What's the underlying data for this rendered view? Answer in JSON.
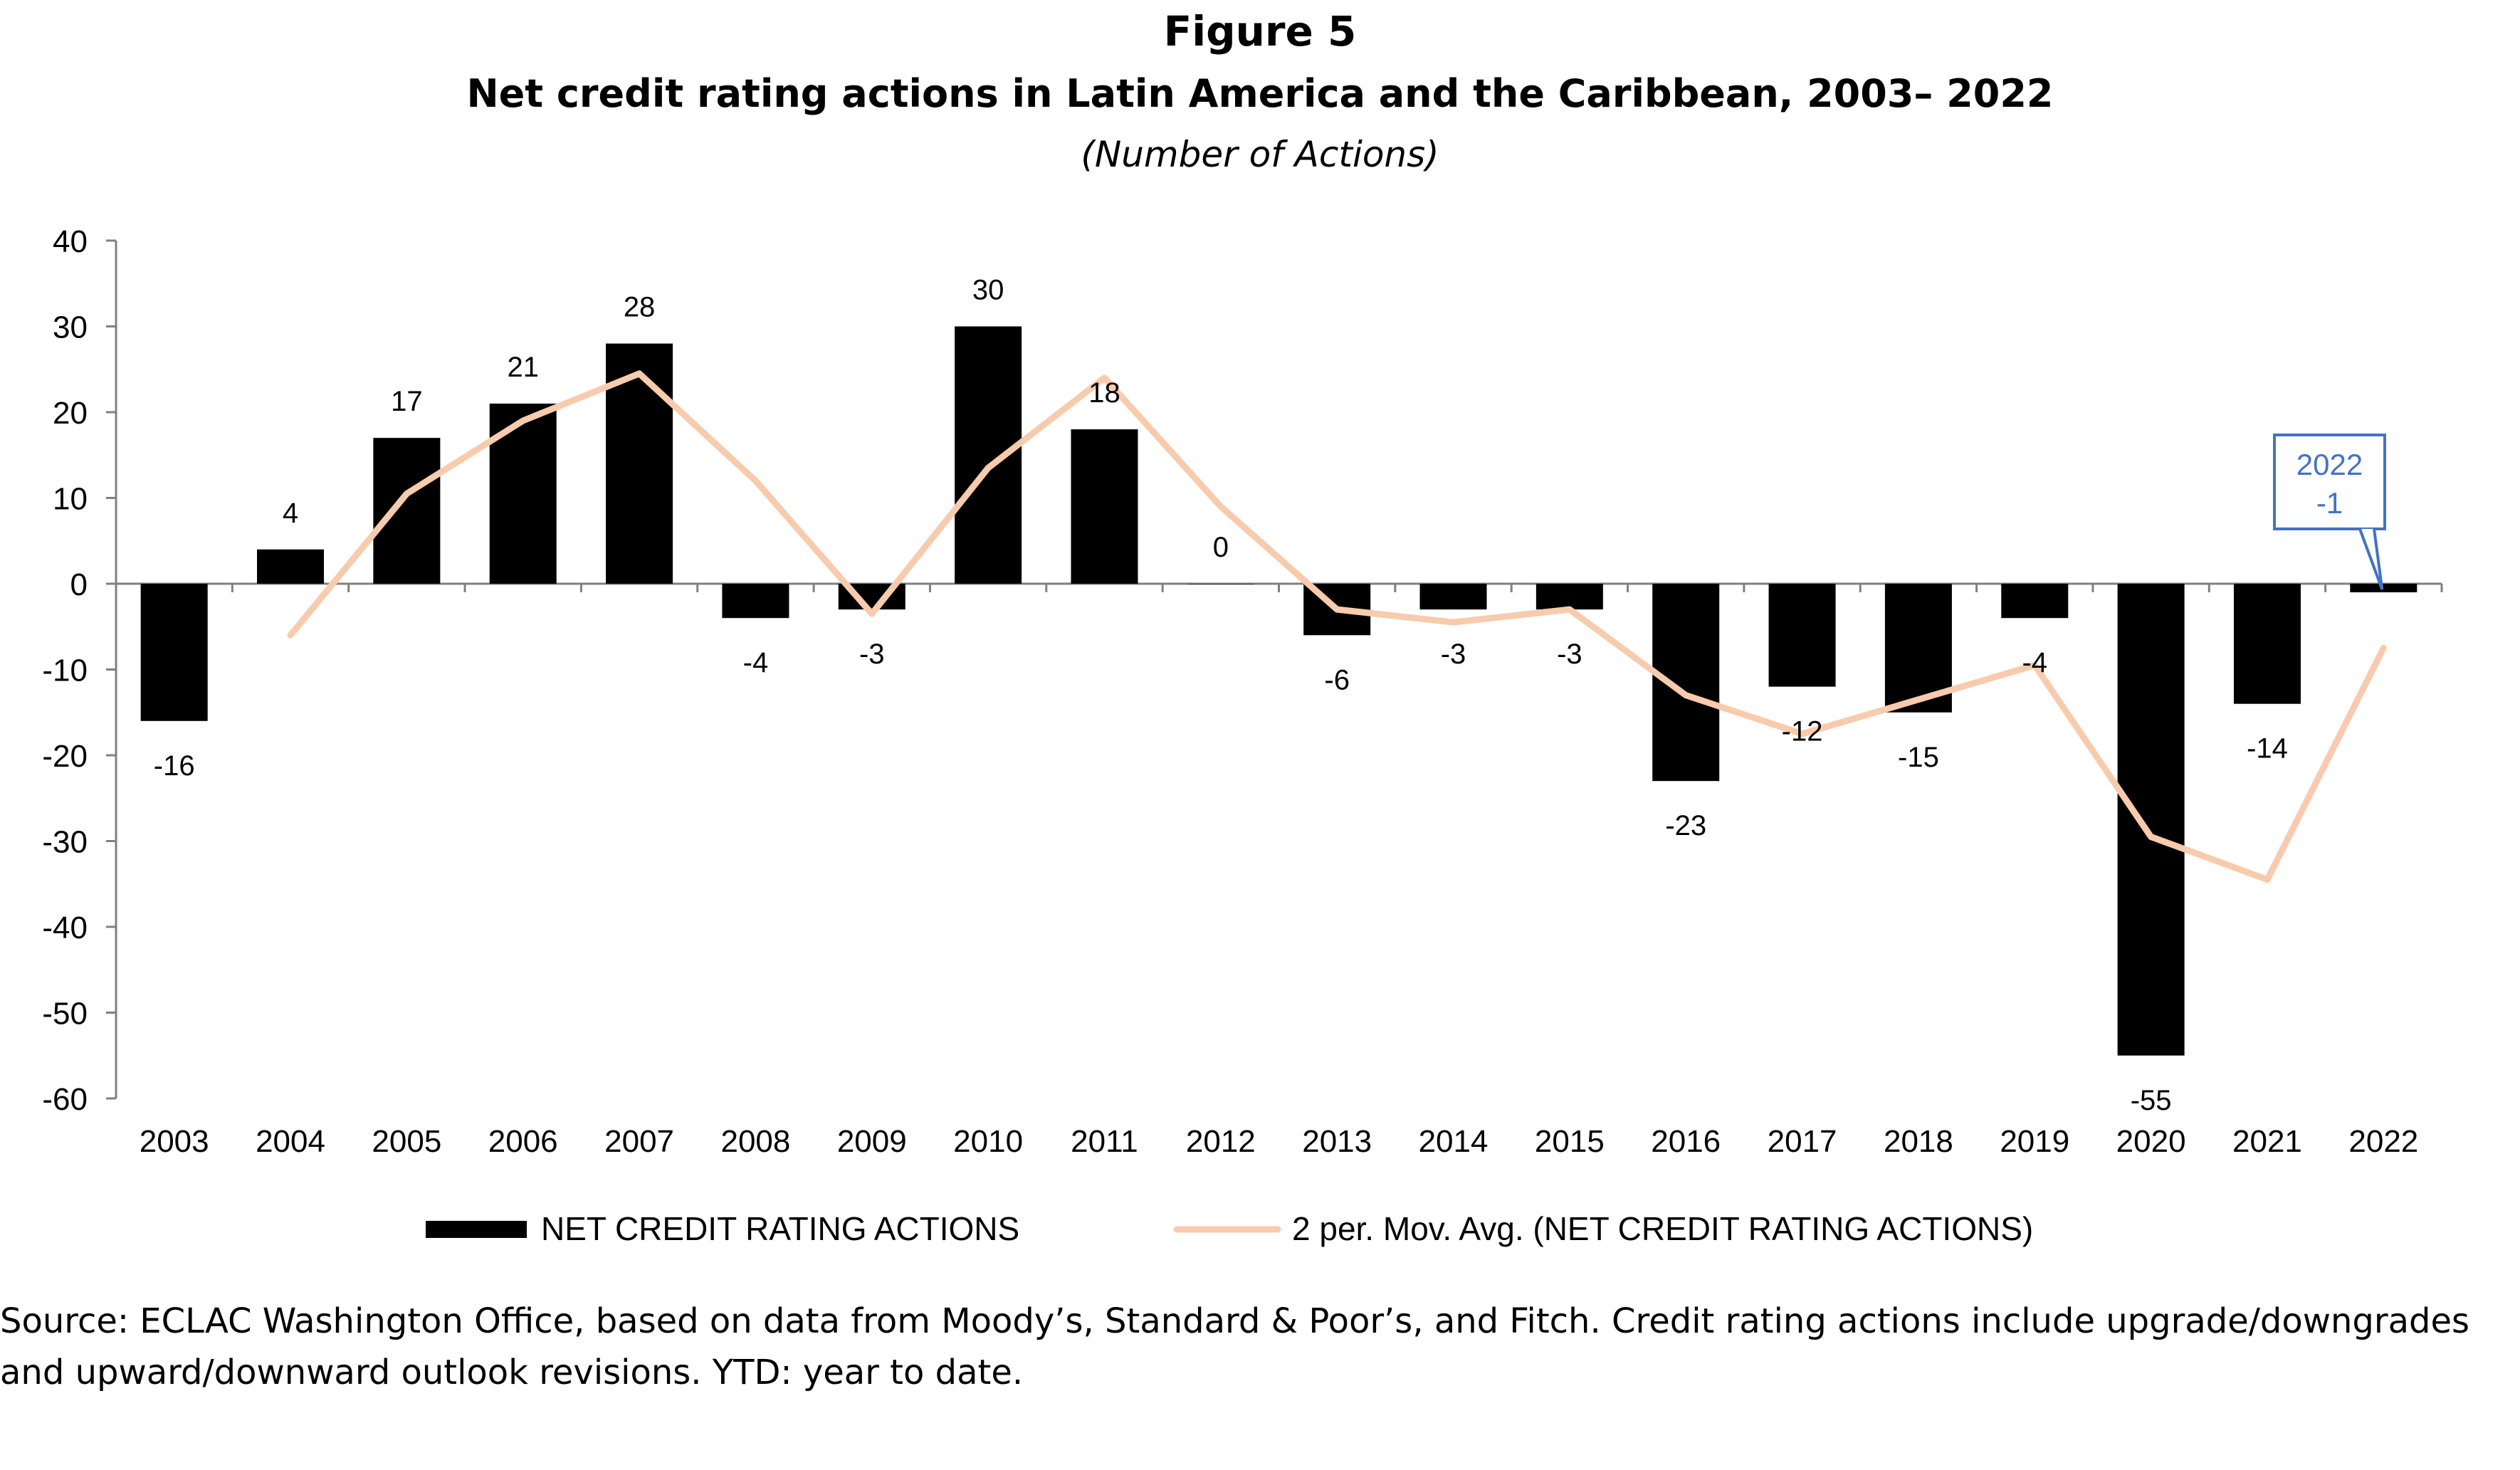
{
  "figure_label": "Figure 5",
  "title": "Net credit rating actions in Latin America and the Caribbean, 2003– 2022",
  "subtitle": "(Number of Actions)",
  "source_line1": "Source:  ECLAC Washington Office, based on data from Moody’s, Standard & Poor’s, and Fitch. Credit rating actions include upgrade/downgrades",
  "source_line2": "and upward/downward outlook revisions. YTD: year to date.",
  "chart_data": {
    "type": "bar",
    "categories": [
      "2003",
      "2004",
      "2005",
      "2006",
      "2007",
      "2008",
      "2009",
      "2010",
      "2011",
      "2012",
      "2013",
      "2014",
      "2015",
      "2016",
      "2017",
      "2018",
      "2019",
      "2020",
      "2021",
      "2022"
    ],
    "series": [
      {
        "name": "NET CREDIT RATING ACTIONS",
        "type": "bar",
        "color": "#000000",
        "values": [
          -16,
          4,
          17,
          21,
          28,
          -4,
          -3,
          30,
          18,
          0,
          -6,
          -3,
          -3,
          -23,
          -12,
          -15,
          -4,
          -55,
          -14,
          -1
        ],
        "data_labels": [
          "-16",
          "4",
          "17",
          "21",
          "28",
          "-4",
          "-3",
          "30",
          "18",
          "0",
          "-6",
          "-3",
          "-3",
          "-23",
          "-12",
          "-15",
          "-4",
          "-55",
          "-14",
          ""
        ]
      },
      {
        "name": "2 per. Mov. Avg. (NET CREDIT RATING ACTIONS)",
        "type": "line",
        "color": "#F8CBAD",
        "values": [
          null,
          -6,
          10.5,
          19,
          24.5,
          12,
          -3.5,
          13.5,
          24,
          9,
          -3,
          -4.5,
          -3,
          -13,
          -17.5,
          -13.5,
          -9.5,
          -29.5,
          -34.5,
          -7.5
        ]
      }
    ],
    "ylim": [
      -60,
      40
    ],
    "yticks": [
      "40",
      "30",
      "20",
      "10",
      "0",
      "-10",
      "-20",
      "-30",
      "-40",
      "-50",
      "-60"
    ],
    "legend_position": "bottom",
    "callout": {
      "line1": "2022",
      "line2": "-1",
      "color": "#4472C4"
    }
  }
}
